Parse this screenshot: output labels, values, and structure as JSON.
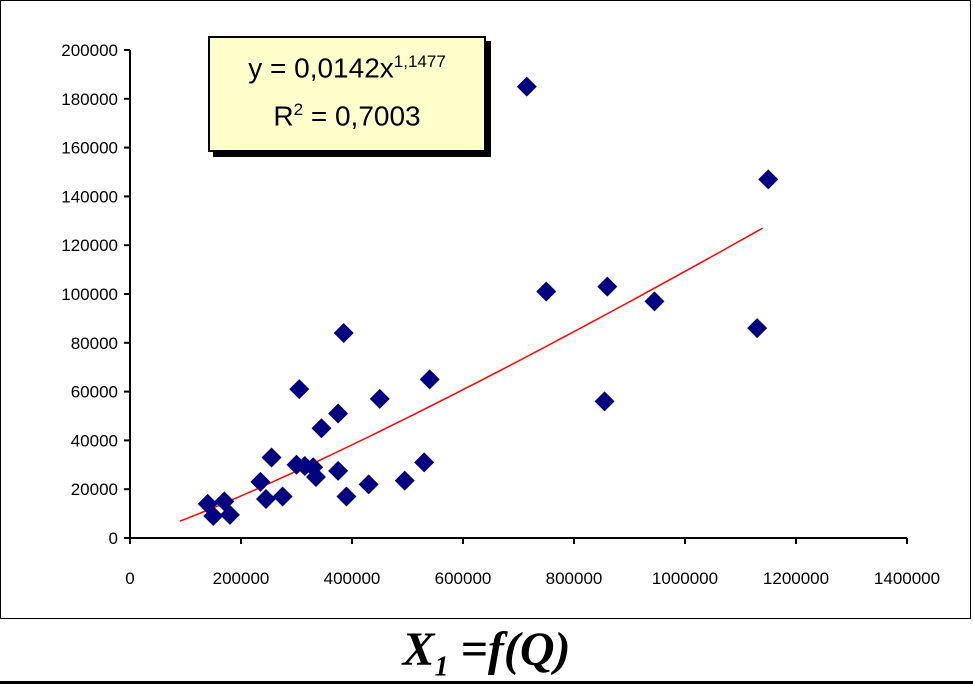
{
  "chart_data": {
    "type": "scatter",
    "xlim": [
      0,
      1400000
    ],
    "ylim": [
      0,
      200000
    ],
    "x_ticks": [
      "0",
      "200000",
      "400000",
      "600000",
      "800000",
      "1000000",
      "1200000",
      "1400000"
    ],
    "y_ticks": [
      "0",
      "20000",
      "40000",
      "60000",
      "80000",
      "100000",
      "120000",
      "140000",
      "160000",
      "180000",
      "200000"
    ],
    "series": [
      {
        "marker": "diamond",
        "color": "#000080",
        "points": [
          [
            140000,
            14000
          ],
          [
            150000,
            9000
          ],
          [
            170000,
            15000
          ],
          [
            180000,
            9500
          ],
          [
            235000,
            23000
          ],
          [
            245000,
            16000
          ],
          [
            255000,
            33000
          ],
          [
            275000,
            17000
          ],
          [
            300000,
            30000
          ],
          [
            305000,
            61000
          ],
          [
            315000,
            29500
          ],
          [
            330000,
            29000
          ],
          [
            335000,
            25000
          ],
          [
            345000,
            45000
          ],
          [
            375000,
            51000
          ],
          [
            375000,
            27500
          ],
          [
            385000,
            84000
          ],
          [
            390000,
            17000
          ],
          [
            430000,
            22000
          ],
          [
            450000,
            57000
          ],
          [
            495000,
            23500
          ],
          [
            530000,
            31000
          ],
          [
            540000,
            65000
          ],
          [
            715000,
            185000
          ],
          [
            750000,
            101000
          ],
          [
            855000,
            56000
          ],
          [
            860000,
            103000
          ],
          [
            945000,
            97000
          ],
          [
            1130000,
            86000
          ],
          [
            1150000,
            147000
          ]
        ]
      }
    ],
    "trendline": {
      "type": "power",
      "coef": 0.0142,
      "exponent": 1.1477,
      "color": "#ff0000",
      "x_start": 90000,
      "x_end": 1140000
    },
    "equation": {
      "prefix": "y = 0,0142x",
      "exponent": "1,1477",
      "r2_prefix": "R",
      "r2_sup": "2",
      "r2_value": " = 0,7003"
    },
    "caption": {
      "main": "X",
      "sub": "1",
      "rest": " =f(Q)"
    },
    "grid": false
  }
}
